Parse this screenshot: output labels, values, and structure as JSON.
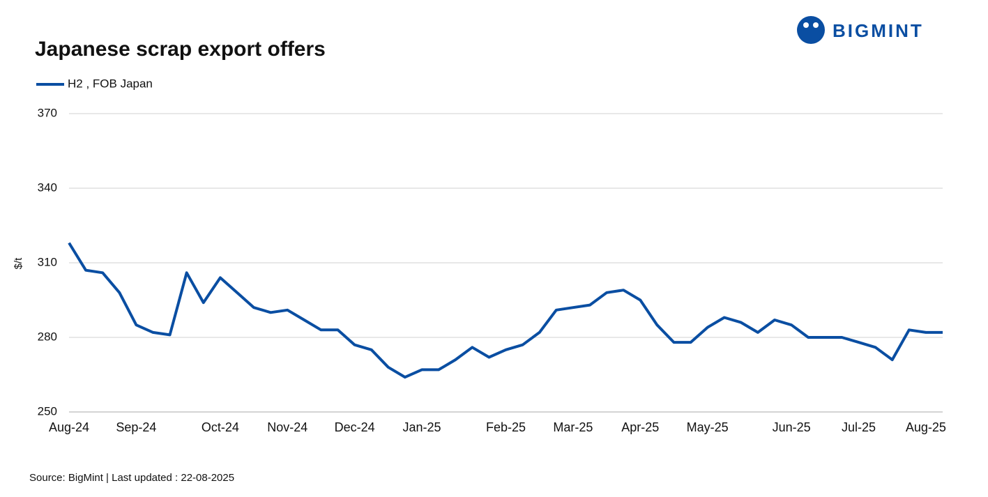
{
  "chart_data": {
    "type": "line",
    "title": "Japanese scrap export offers",
    "y_label": "$/t",
    "categories": [
      "Aug-24",
      null,
      null,
      null,
      "Sep-24",
      null,
      null,
      null,
      null,
      "Oct-24",
      null,
      null,
      null,
      "Nov-24",
      null,
      null,
      null,
      "Dec-24",
      null,
      null,
      null,
      "Jan-25",
      null,
      null,
      null,
      null,
      "Feb-25",
      null,
      null,
      null,
      "Mar-25",
      null,
      null,
      null,
      "Apr-25",
      null,
      null,
      null,
      "May-25",
      null,
      null,
      null,
      null,
      "Jun-25",
      null,
      null,
      null,
      "Jul-25",
      null,
      null,
      null,
      "Aug-25",
      null
    ],
    "series": [
      {
        "name": "H2 , FOB Japan",
        "color": "#0a4ea2",
        "values": [
          318,
          307,
          306,
          298,
          285,
          282,
          281,
          306,
          294,
          304,
          298,
          292,
          290,
          291,
          287,
          283,
          283,
          277,
          275,
          268,
          264,
          267,
          267,
          271,
          276,
          272,
          275,
          277,
          282,
          291,
          292,
          293,
          298,
          299,
          295,
          285,
          278,
          278,
          284,
          288,
          286,
          282,
          287,
          285,
          280,
          280,
          280,
          278,
          276,
          271,
          283,
          282,
          282
        ]
      }
    ],
    "ylim": [
      250,
      370
    ],
    "yticks": [
      250,
      280,
      310,
      340,
      370
    ],
    "grid": true
  },
  "source": "Source: BigMint  | Last updated : 22-08-2025",
  "logo": "BIGMINT"
}
